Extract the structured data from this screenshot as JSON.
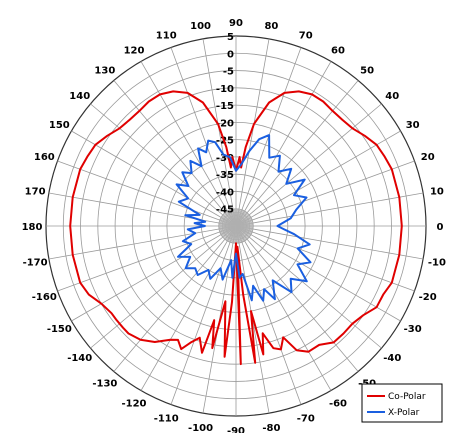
{
  "chart_data": {
    "type": "polar",
    "title": "",
    "angle_unit": "deg",
    "angle_ticks": [
      90,
      80,
      70,
      60,
      50,
      40,
      30,
      20,
      10,
      0,
      -10,
      -20,
      -30,
      -40,
      -50,
      -60,
      -70,
      -80,
      -90,
      -100,
      -110,
      -120,
      -130,
      -140,
      -150,
      -160,
      -170,
      180,
      170,
      160,
      150,
      140,
      130,
      120,
      110,
      100
    ],
    "angle_tick_labels": [
      "90",
      "80",
      "70",
      "60",
      "50",
      "40",
      "30",
      "20",
      "10",
      "0",
      "-10",
      "-20",
      "-30",
      "-40",
      "-50",
      "-60",
      "-70",
      "-80",
      "-90",
      "-100",
      "-110",
      "-120",
      "-130",
      "-140",
      "-150",
      "-160",
      "-170",
      "180",
      "170",
      "160",
      "150",
      "140",
      "130",
      "120",
      "110",
      "100"
    ],
    "r_range": [
      -50,
      5
    ],
    "r_ticks": [
      5,
      0,
      -5,
      -10,
      -15,
      -20,
      -25,
      -30,
      -35,
      -40,
      -45
    ],
    "r_tick_labels": [
      "5",
      "0",
      "-5",
      "-10",
      "-15",
      "-20",
      "-25",
      "-30",
      "-35",
      "-40",
      "-45"
    ],
    "grid": true,
    "legend_position": "bottom-right",
    "series": [
      {
        "name": "Co-Polar",
        "color": "#e00000",
        "points": [
          [
            0,
            -2
          ],
          [
            10,
            -2
          ],
          [
            20,
            -2
          ],
          [
            25,
            -2.5
          ],
          [
            30,
            -3
          ],
          [
            35,
            -4.5
          ],
          [
            40,
            -6
          ],
          [
            45,
            -6.5
          ],
          [
            50,
            -6.5
          ],
          [
            55,
            -6
          ],
          [
            60,
            -6
          ],
          [
            65,
            -7
          ],
          [
            70,
            -9
          ],
          [
            75,
            -13
          ],
          [
            80,
            -20
          ],
          [
            83,
            -27
          ],
          [
            85,
            -33
          ],
          [
            87,
            -30
          ],
          [
            90,
            -34
          ],
          [
            93,
            -30
          ],
          [
            95,
            -33
          ],
          [
            97,
            -27
          ],
          [
            100,
            -20
          ],
          [
            105,
            -13
          ],
          [
            110,
            -9
          ],
          [
            115,
            -7
          ],
          [
            120,
            -6
          ],
          [
            125,
            -6
          ],
          [
            130,
            -6.5
          ],
          [
            135,
            -6.5
          ],
          [
            140,
            -6
          ],
          [
            145,
            -4.5
          ],
          [
            150,
            -3
          ],
          [
            155,
            -2.5
          ],
          [
            160,
            -2
          ],
          [
            170,
            -2
          ],
          [
            180,
            -2
          ],
          [
            -170,
            -2
          ],
          [
            -160,
            -2
          ],
          [
            -155,
            -3
          ],
          [
            -150,
            -5
          ],
          [
            -145,
            -6
          ],
          [
            -142,
            -6
          ],
          [
            -138,
            -6
          ],
          [
            -135,
            -6
          ],
          [
            -130,
            -7
          ],
          [
            -125,
            -9
          ],
          [
            -120,
            -12
          ],
          [
            -117,
            -13
          ],
          [
            -114,
            -11
          ],
          [
            -111,
            -14
          ],
          [
            -108,
            -16
          ],
          [
            -105,
            -12
          ],
          [
            -103,
            -22
          ],
          [
            -101,
            -14
          ],
          [
            -98,
            -28
          ],
          [
            -95,
            -12
          ],
          [
            -93,
            -28
          ],
          [
            -90,
            -45
          ],
          [
            -88,
            -10
          ],
          [
            -86,
            -44
          ],
          [
            -84,
            -30
          ],
          [
            -82,
            -10
          ],
          [
            -80,
            -25
          ],
          [
            -78,
            -12
          ],
          [
            -76,
            -18
          ],
          [
            -73,
            -13
          ],
          [
            -70,
            -12
          ],
          [
            -67,
            -15
          ],
          [
            -64,
            -10
          ],
          [
            -60,
            -8
          ],
          [
            -55,
            -8
          ],
          [
            -50,
            -6
          ],
          [
            -45,
            -6
          ],
          [
            -40,
            -6
          ],
          [
            -35,
            -5
          ],
          [
            -30,
            -3
          ],
          [
            -25,
            -3
          ],
          [
            -20,
            -2
          ],
          [
            -10,
            -2
          ],
          [
            0,
            -2
          ]
        ]
      },
      {
        "name": "X-Polar",
        "color": "#1a5fe0",
        "points": [
          [
            0,
            -38
          ],
          [
            8,
            -34
          ],
          [
            15,
            -32
          ],
          [
            22,
            -28
          ],
          [
            28,
            -31
          ],
          [
            34,
            -26
          ],
          [
            40,
            -31
          ],
          [
            46,
            -27
          ],
          [
            52,
            -30
          ],
          [
            58,
            -26
          ],
          [
            64,
            -28
          ],
          [
            70,
            -22
          ],
          [
            75,
            -24
          ],
          [
            80,
            -28
          ],
          [
            85,
            -32
          ],
          [
            90,
            -34
          ],
          [
            95,
            -30
          ],
          [
            100,
            -29
          ],
          [
            104,
            -25
          ],
          [
            108,
            -24
          ],
          [
            112,
            -27
          ],
          [
            116,
            -25
          ],
          [
            120,
            -30
          ],
          [
            125,
            -27
          ],
          [
            130,
            -30
          ],
          [
            135,
            -28
          ],
          [
            140,
            -32
          ],
          [
            145,
            -29
          ],
          [
            150,
            -34
          ],
          [
            157,
            -32
          ],
          [
            163,
            -39
          ],
          [
            168,
            -35
          ],
          [
            172,
            -41
          ],
          [
            176,
            -38
          ],
          [
            180,
            -41
          ],
          [
            -176,
            -36
          ],
          [
            -170,
            -38
          ],
          [
            -164,
            -34
          ],
          [
            -158,
            -36
          ],
          [
            -152,
            -31
          ],
          [
            -146,
            -34
          ],
          [
            -140,
            -31
          ],
          [
            -134,
            -33
          ],
          [
            -128,
            -32
          ],
          [
            -122,
            -35
          ],
          [
            -116,
            -33
          ],
          [
            -110,
            -37
          ],
          [
            -104,
            -34
          ],
          [
            -98,
            -40
          ],
          [
            -94,
            -35
          ],
          [
            -90,
            -42
          ],
          [
            -86,
            -35
          ],
          [
            -82,
            -36
          ],
          [
            -78,
            -28
          ],
          [
            -74,
            -32
          ],
          [
            -70,
            -27
          ],
          [
            -66,
            -30
          ],
          [
            -62,
            -26
          ],
          [
            -56,
            -31
          ],
          [
            -50,
            -25
          ],
          [
            -44,
            -28
          ],
          [
            -38,
            -24
          ],
          [
            -32,
            -29
          ],
          [
            -26,
            -26
          ],
          [
            -20,
            -31
          ],
          [
            -14,
            -28
          ],
          [
            -8,
            -33
          ],
          [
            -4,
            -36
          ],
          [
            0,
            -38
          ]
        ]
      }
    ]
  }
}
